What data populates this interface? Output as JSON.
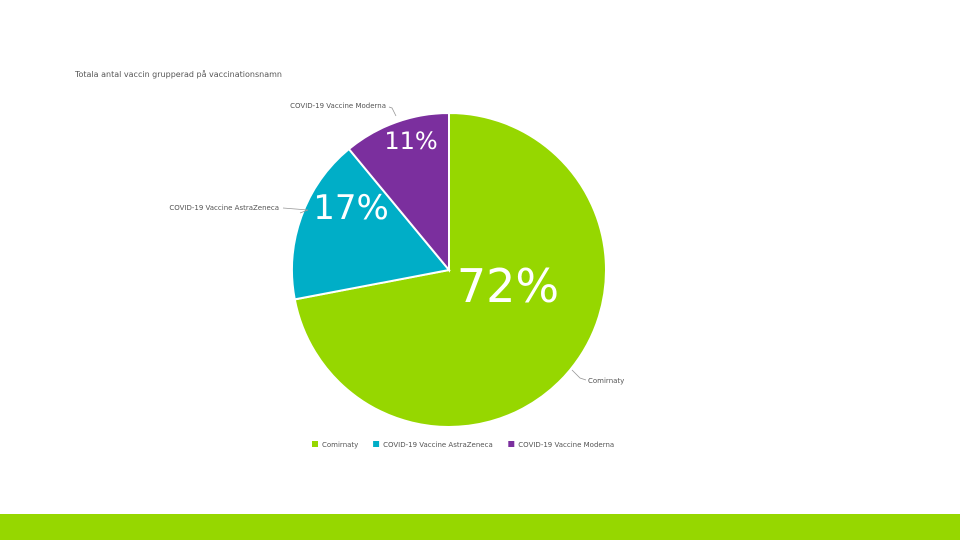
{
  "slide": {
    "accent_bar_color": "#96d700"
  },
  "chart_data": {
    "type": "pie",
    "title": "Totala antal vaccin grupperad på vaccinationsnamn",
    "slices": [
      {
        "name": "Comirnaty",
        "value": 72,
        "label": "72%",
        "color": "#96d700"
      },
      {
        "name": "COVID-19 Vaccine AstraZeneca",
        "value": 17,
        "label": "17%",
        "color": "#00aec7"
      },
      {
        "name": "COVID-19 Vaccine Moderna",
        "value": 11,
        "label": "11%",
        "color": "#7b2f9e"
      }
    ],
    "start_angle_deg": 0,
    "direction": "clockwise",
    "legend_position": "bottom",
    "data_labels": "percent"
  }
}
